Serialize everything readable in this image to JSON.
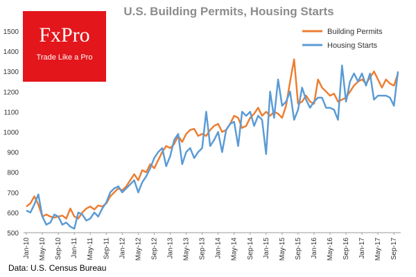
{
  "logo": {
    "name": "FxPro",
    "tagline": "Trade Like a Pro"
  },
  "source": "Data: U.S. Census Bureau",
  "chart_data": {
    "type": "line",
    "title": "U.S. Building Permits, Housing Starts",
    "xlabel": "",
    "ylabel": "",
    "ylim": [
      500,
      1500
    ],
    "y_ticks": [
      500,
      600,
      700,
      800,
      900,
      1000,
      1100,
      1200,
      1300,
      1400,
      1500
    ],
    "x_tick_labels": [
      "Jan-10",
      "May-10",
      "Sep-10",
      "Jan-11",
      "May-11",
      "Sep-11",
      "Jan-12",
      "May-12",
      "Sep-12",
      "Jan-13",
      "May-13",
      "Sep-13",
      "Jan-14",
      "May-14",
      "Sep-14",
      "Jan-15",
      "May-15",
      "Sep-15",
      "Jan-16",
      "May-16",
      "Sep-16",
      "Jan-17",
      "May-17",
      "Sep-17"
    ],
    "x_start": "Jan-10",
    "n_months": 94,
    "legend_position": "top-right",
    "series": [
      {
        "name": "Building Permits",
        "color": "#ed7d31",
        "values": [
          630,
          645,
          680,
          640,
          580,
          590,
          580,
          575,
          580,
          585,
          570,
          620,
          580,
          570,
          600,
          620,
          630,
          615,
          635,
          630,
          645,
          680,
          700,
          720,
          710,
          730,
          760,
          790,
          760,
          810,
          800,
          840,
          820,
          860,
          900,
          930,
          920,
          940,
          980,
          950,
          990,
          1010,
          1015,
          980,
          990,
          980,
          1010,
          1030,
          1040,
          1000,
          1010,
          1040,
          1080,
          1070,
          1020,
          1030,
          1070,
          1090,
          1120,
          1080,
          1100,
          1080,
          1100,
          1090,
          1070,
          1130,
          1250,
          1360,
          1140,
          1150,
          1180,
          1150,
          1140,
          1260,
          1220,
          1200,
          1180,
          1190,
          1150,
          1160,
          1170,
          1200,
          1230,
          1250,
          1260,
          1240,
          1270,
          1300,
          1260,
          1220,
          1260,
          1240,
          1230,
          1290
        ]
      },
      {
        "name": "Housing Starts",
        "color": "#5b9bd5",
        "values": [
          610,
          600,
          640,
          690,
          580,
          540,
          550,
          590,
          580,
          540,
          550,
          530,
          520,
          600,
          590,
          560,
          570,
          600,
          580,
          620,
          650,
          700,
          720,
          730,
          700,
          720,
          740,
          760,
          700,
          750,
          780,
          820,
          870,
          900,
          920,
          830,
          880,
          960,
          990,
          840,
          900,
          920,
          870,
          900,
          920,
          1100,
          930,
          960,
          1000,
          900,
          1010,
          1040,
          1050,
          930,
          1100,
          1080,
          1100,
          1030,
          1080,
          1060,
          890,
          1200,
          1070,
          1260,
          1130,
          1150,
          1200,
          1060,
          1110,
          1220,
          1160,
          1120,
          1150,
          1170,
          1170,
          1120,
          1120,
          1110,
          1060,
          1330,
          1150,
          1250,
          1290,
          1250,
          1290,
          1230,
          1290,
          1160,
          1180,
          1180,
          1180,
          1170,
          1130,
          1300
        ]
      }
    ]
  }
}
